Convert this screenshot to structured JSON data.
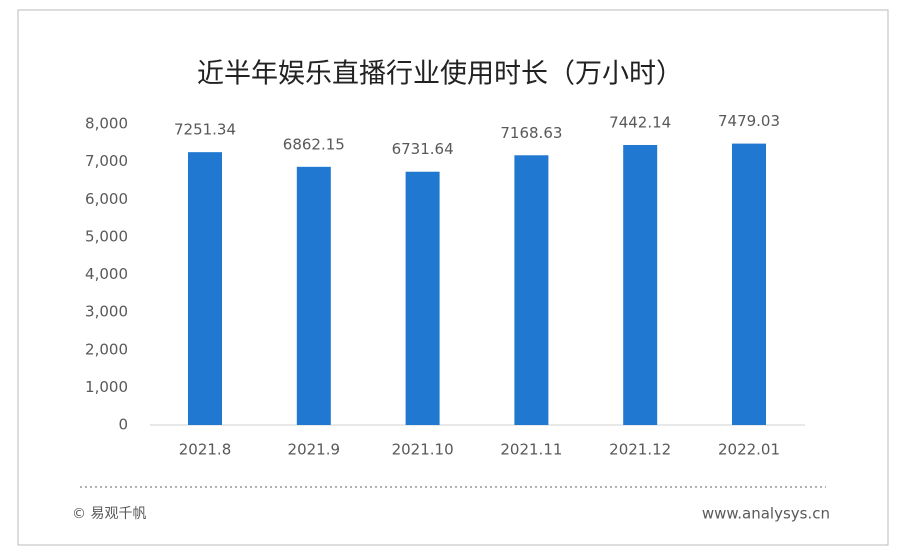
{
  "chart_data": {
    "type": "bar",
    "title": "近半年娱乐直播行业使用时长（万小时）",
    "categories": [
      "2021.8",
      "2021.9",
      "2021.10",
      "2021.11",
      "2021.12",
      "2022.01"
    ],
    "values": [
      7251.34,
      6862.15,
      6731.64,
      7168.63,
      7442.14,
      7479.03
    ],
    "color": "#2078d0",
    "ylim": [
      0,
      8000
    ],
    "yticks": [
      0,
      {
        "value": 1000,
        "label": "1,000"
      },
      {
        "value": 2000,
        "label": "2,000"
      },
      {
        "value": 3000,
        "label": "3,000"
      },
      {
        "value": 4000,
        "label": "4,000"
      },
      {
        "value": 5000,
        "label": "5,000"
      },
      {
        "value": 6000,
        "label": "6,000"
      },
      {
        "value": 7000,
        "label": "7,000"
      },
      {
        "value": 8000,
        "label": "8,000"
      }
    ],
    "grid": false
  },
  "footer": {
    "copyright": "© 易观千帆",
    "website": "www.analysys.cn"
  }
}
